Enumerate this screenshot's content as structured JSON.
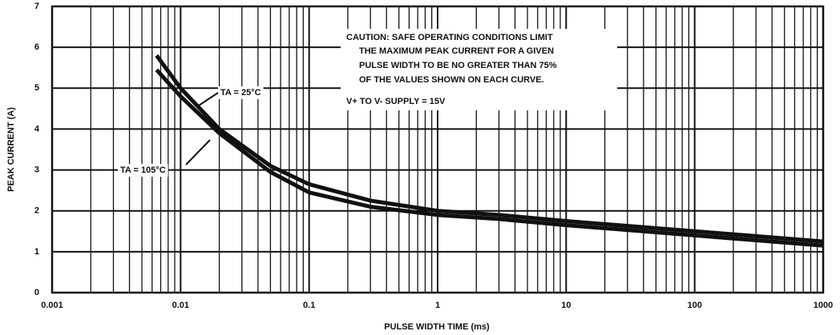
{
  "chart_data": {
    "type": "line",
    "xlabel": "PULSE WIDTH TIME (ms)",
    "ylabel": "PEAK CURRENT (A)",
    "xscale": "log",
    "xlim": [
      0.001,
      1000
    ],
    "xticks": [
      0.001,
      0.01,
      0.1,
      1,
      10,
      100,
      1000
    ],
    "xminorticks": [
      0.002,
      0.003,
      0.004,
      0.005,
      0.006,
      0.007,
      0.008,
      0.009,
      0.02,
      0.03,
      0.04,
      0.05,
      0.06,
      0.07,
      0.08,
      0.09,
      0.2,
      0.3,
      0.4,
      0.5,
      0.6,
      0.7,
      0.8,
      0.9,
      2,
      3,
      4,
      5,
      6,
      7,
      8,
      9,
      20,
      30,
      40,
      50,
      60,
      70,
      80,
      90,
      200,
      300,
      400,
      500,
      600,
      700,
      800,
      900
    ],
    "ylim": [
      0,
      7
    ],
    "yticks": [
      0,
      1,
      2,
      3,
      4,
      5,
      6,
      7
    ],
    "grid": true,
    "x": [
      0.0065,
      0.01,
      0.02,
      0.05,
      0.1,
      0.3,
      1,
      3,
      10,
      100,
      1000
    ],
    "series": [
      {
        "name": "TA = 25°C",
        "color": "#111111",
        "values": [
          5.8,
          5.0,
          4.0,
          3.1,
          2.65,
          2.25,
          2.0,
          1.9,
          1.75,
          1.5,
          1.25
        ]
      },
      {
        "name": "TA = 105°C",
        "color": "#111111",
        "values": [
          5.45,
          4.8,
          3.9,
          2.95,
          2.45,
          2.1,
          1.9,
          1.8,
          1.65,
          1.4,
          1.15
        ]
      }
    ],
    "annotations": [
      "CAUTION: SAFE OPERATING CONDITIONS LIMIT",
      "THE MAXIMUM PEAK CURRENT FOR A GIVEN",
      "PULSE WIDTH TO BE NO GREATER THAN 75%",
      "OF THE VALUES SHOWN ON EACH CURVE.",
      "V+ TO V- SUPPLY = 15V"
    ]
  }
}
